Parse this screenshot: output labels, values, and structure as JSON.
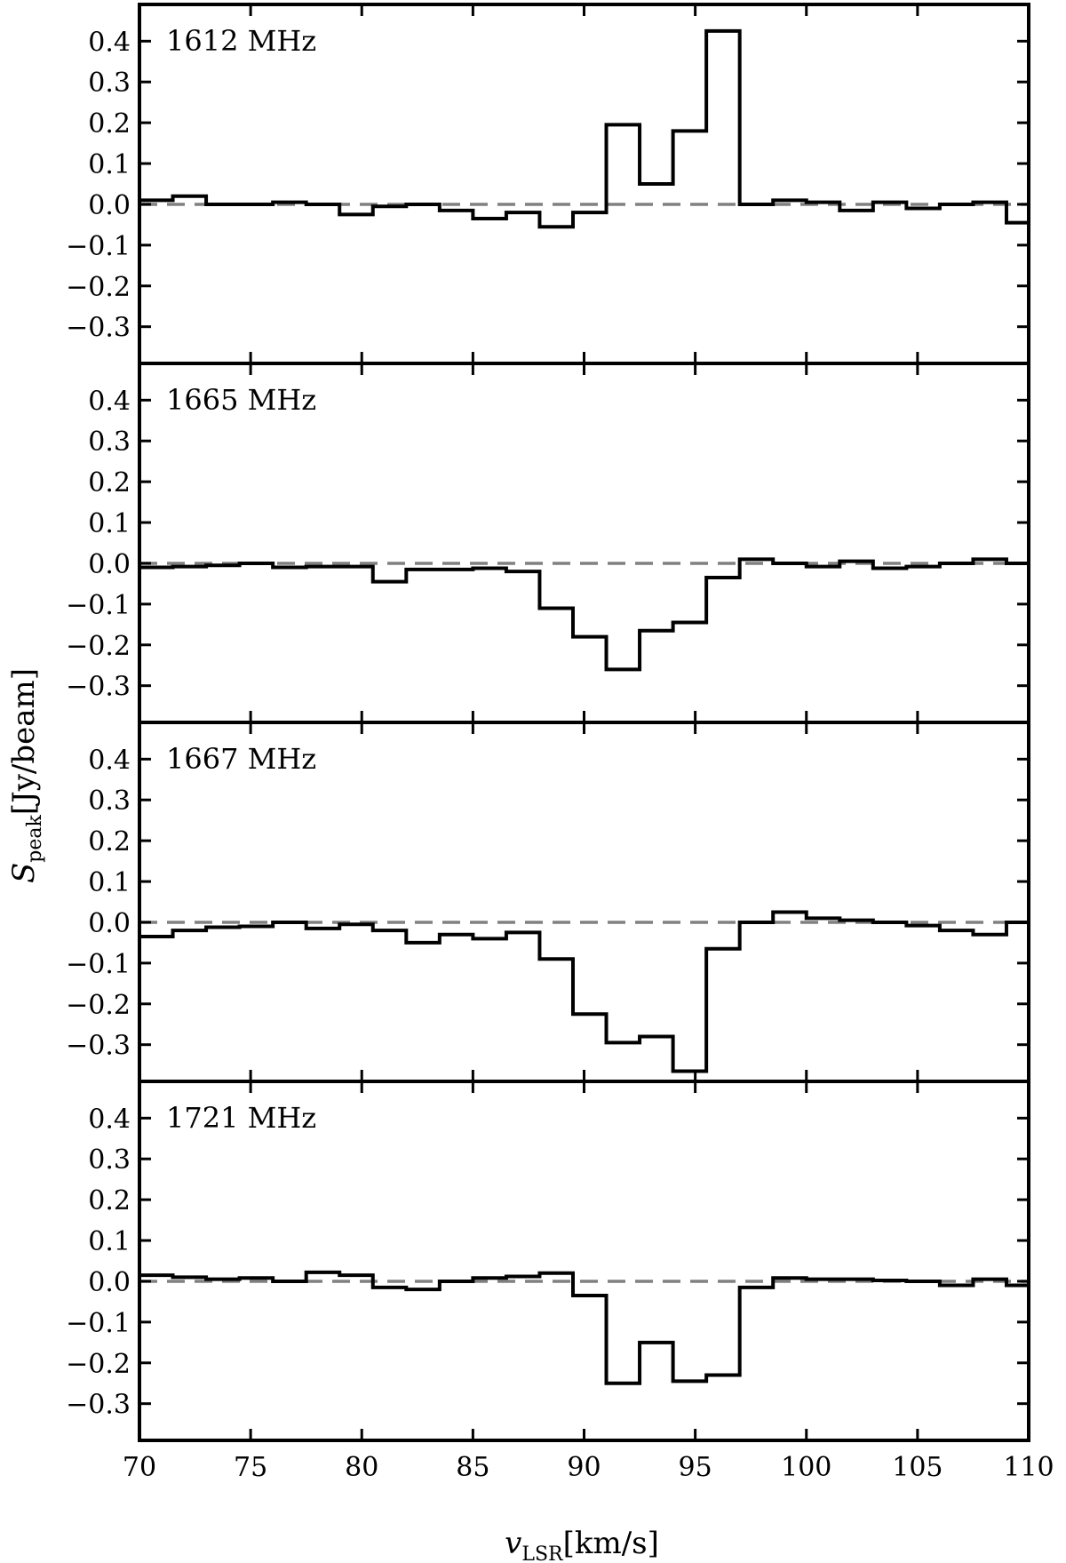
{
  "figure": {
    "ylabel_main": "S",
    "ylabel_sub": "peak",
    "ylabel_unit": "[Jy/beam]",
    "xlabel_main": "v",
    "xlabel_sub": "LSR",
    "xlabel_unit": "[km/s]"
  },
  "chart_data": [
    {
      "type": "line",
      "panel_label": "1612 MHz",
      "xlim": [
        70,
        110
      ],
      "ylim": [
        -0.39,
        0.49
      ],
      "x_ticks": [
        "70",
        "75",
        "80",
        "85",
        "90",
        "95",
        "100",
        "105",
        "110"
      ],
      "y_ticks": [
        "0.4",
        "0.3",
        "0.2",
        "0.1",
        "0.0",
        "−0.1",
        "−0.2",
        "−0.3"
      ],
      "baseline": 0.0,
      "steps": {
        "x": [
          70.0,
          71.5,
          73.0,
          74.5,
          76.0,
          77.5,
          79.0,
          80.5,
          82.0,
          83.5,
          85.0,
          86.5,
          88.0,
          89.5,
          91.0,
          92.5,
          94.0,
          95.5,
          97.0,
          98.5,
          100.0,
          101.5,
          103.0,
          104.5,
          106.0,
          107.5,
          109.0
        ],
        "y": [
          0.01,
          0.02,
          0.0,
          0.0,
          0.005,
          0.0,
          -0.025,
          -0.005,
          0.0,
          -0.015,
          -0.035,
          -0.02,
          -0.055,
          -0.02,
          0.195,
          0.05,
          0.18,
          0.425,
          0.0,
          0.01,
          0.005,
          -0.015,
          0.005,
          -0.01,
          0.0,
          0.005,
          -0.045
        ]
      }
    },
    {
      "type": "line",
      "panel_label": "1665 MHz",
      "xlim": [
        70,
        110
      ],
      "ylim": [
        -0.39,
        0.49
      ],
      "x_ticks": [
        "70",
        "75",
        "80",
        "85",
        "90",
        "95",
        "100",
        "105",
        "110"
      ],
      "y_ticks": [
        "0.4",
        "0.3",
        "0.2",
        "0.1",
        "0.0",
        "−0.1",
        "−0.2",
        "−0.3"
      ],
      "baseline": 0.0,
      "steps": {
        "x": [
          70.0,
          71.5,
          73.0,
          74.5,
          76.0,
          77.5,
          79.0,
          80.5,
          82.0,
          83.5,
          85.0,
          86.5,
          88.0,
          89.5,
          91.0,
          92.5,
          94.0,
          95.5,
          97.0,
          98.5,
          100.0,
          101.5,
          103.0,
          104.5,
          106.0,
          107.5,
          109.0
        ],
        "y": [
          -0.01,
          -0.008,
          -0.005,
          0.0,
          -0.01,
          -0.008,
          -0.008,
          -0.045,
          -0.015,
          -0.015,
          -0.012,
          -0.02,
          -0.11,
          -0.18,
          -0.26,
          -0.165,
          -0.145,
          -0.035,
          0.01,
          0.0,
          -0.008,
          0.005,
          -0.012,
          -0.008,
          0.0,
          0.01,
          0.0
        ]
      }
    },
    {
      "type": "line",
      "panel_label": "1667 MHz",
      "xlim": [
        70,
        110
      ],
      "ylim": [
        -0.39,
        0.49
      ],
      "x_ticks": [
        "70",
        "75",
        "80",
        "85",
        "90",
        "95",
        "100",
        "105",
        "110"
      ],
      "y_ticks": [
        "0.4",
        "0.3",
        "0.2",
        "0.1",
        "0.0",
        "−0.1",
        "−0.2",
        "−0.3"
      ],
      "baseline": 0.0,
      "steps": {
        "x": [
          70.0,
          71.5,
          73.0,
          74.5,
          76.0,
          77.5,
          79.0,
          80.5,
          82.0,
          83.5,
          85.0,
          86.5,
          88.0,
          89.5,
          91.0,
          92.5,
          94.0,
          95.5,
          97.0,
          98.5,
          100.0,
          101.5,
          103.0,
          104.5,
          106.0,
          107.5,
          109.0
        ],
        "y": [
          -0.035,
          -0.02,
          -0.012,
          -0.01,
          0.0,
          -0.015,
          -0.005,
          -0.02,
          -0.05,
          -0.03,
          -0.04,
          -0.025,
          -0.09,
          -0.225,
          -0.295,
          -0.28,
          -0.365,
          -0.065,
          0.0,
          0.025,
          0.01,
          0.005,
          0.0,
          -0.008,
          -0.02,
          -0.03,
          0.0
        ]
      }
    },
    {
      "type": "line",
      "panel_label": "1721 MHz",
      "xlim": [
        70,
        110
      ],
      "ylim": [
        -0.39,
        0.49
      ],
      "x_ticks": [
        "70",
        "75",
        "80",
        "85",
        "90",
        "95",
        "100",
        "105",
        "110"
      ],
      "y_ticks": [
        "0.4",
        "0.3",
        "0.2",
        "0.1",
        "0.0",
        "−0.1",
        "−0.2",
        "−0.3"
      ],
      "baseline": 0.0,
      "steps": {
        "x": [
          70.0,
          71.5,
          73.0,
          74.5,
          76.0,
          77.5,
          79.0,
          80.5,
          82.0,
          83.5,
          85.0,
          86.5,
          88.0,
          89.5,
          91.0,
          92.5,
          94.0,
          95.5,
          97.0,
          98.5,
          100.0,
          101.5,
          103.0,
          104.5,
          106.0,
          107.5,
          109.0
        ],
        "y": [
          0.015,
          0.01,
          0.005,
          0.008,
          0.0,
          0.022,
          0.015,
          -0.015,
          -0.02,
          0.0,
          0.008,
          0.012,
          0.02,
          -0.035,
          -0.25,
          -0.15,
          -0.245,
          -0.23,
          -0.015,
          0.008,
          0.005,
          0.005,
          0.002,
          0.0,
          -0.01,
          0.005,
          -0.01
        ]
      }
    }
  ]
}
